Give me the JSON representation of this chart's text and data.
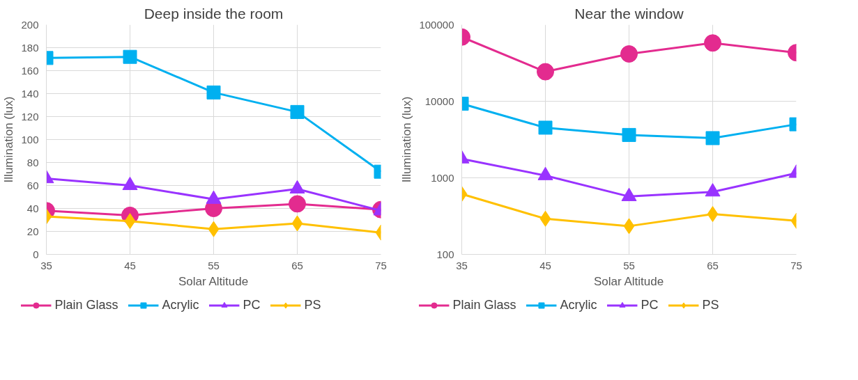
{
  "chart_data": [
    {
      "type": "line",
      "title": "Deep inside the room",
      "xlabel": "Solar Altitude",
      "ylabel": "Illumination (lux)",
      "x": [
        35,
        45,
        55,
        65,
        75
      ],
      "xlim": [
        35,
        75
      ],
      "xticks": [
        35,
        45,
        55,
        65,
        75
      ],
      "ylim": [
        0,
        200
      ],
      "yticks": [
        0,
        20,
        40,
        60,
        80,
        100,
        120,
        140,
        160,
        180,
        200
      ],
      "grid": true,
      "legend": "bottom",
      "series": [
        {
          "name": "Plain Glass",
          "color": "#e32b8f",
          "marker": "circle",
          "values": [
            38,
            34,
            40,
            44,
            39
          ]
        },
        {
          "name": "Acrylic",
          "color": "#00b0f0",
          "marker": "square",
          "values": [
            171,
            172,
            141,
            124,
            72
          ]
        },
        {
          "name": "PC",
          "color": "#9933ff",
          "marker": "triangle",
          "values": [
            66,
            60,
            48,
            57,
            38
          ]
        },
        {
          "name": "PS",
          "color": "#ffc000",
          "marker": "diamond",
          "values": [
            33,
            29,
            22,
            27,
            19
          ]
        }
      ]
    },
    {
      "type": "line",
      "title": "Near the window",
      "xlabel": "Solar Altitude",
      "ylabel": "Illumination (lux)",
      "x": [
        35,
        45,
        55,
        65,
        75
      ],
      "xlim": [
        35,
        75
      ],
      "xticks": [
        35,
        45,
        55,
        65,
        75
      ],
      "ylim": [
        100,
        100000
      ],
      "yticks": [
        100,
        1000,
        10000,
        100000
      ],
      "log": true,
      "grid": true,
      "legend": "bottom",
      "series": [
        {
          "name": "Plain Glass",
          "color": "#e32b8f",
          "marker": "circle",
          "values": [
            69000,
            24300,
            41500,
            57700,
            43100
          ]
        },
        {
          "name": "Acrylic",
          "color": "#00b0f0",
          "marker": "square",
          "values": [
            9300,
            4520,
            3630,
            3300,
            5000
          ]
        },
        {
          "name": "PC",
          "color": "#9933ff",
          "marker": "triangle",
          "values": [
            1770,
            1070,
            570,
            655,
            1150
          ]
        },
        {
          "name": "PS",
          "color": "#ffc000",
          "marker": "diamond",
          "values": [
            615,
            292,
            234,
            336,
            274
          ]
        }
      ]
    }
  ]
}
